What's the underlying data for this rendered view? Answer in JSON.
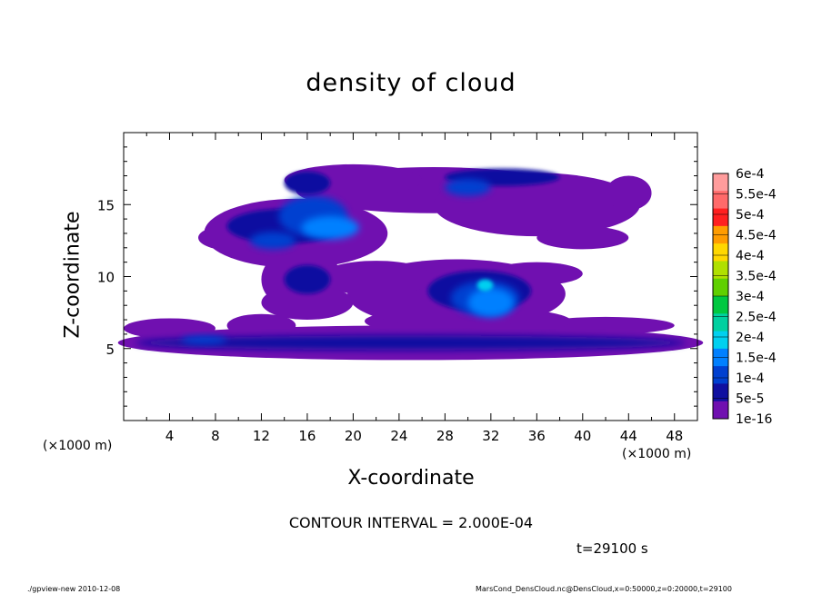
{
  "chart_data": {
    "type": "heatmap",
    "title": "density of cloud",
    "xlabel": "X-coordinate",
    "ylabel": "Z-coordinate",
    "x_unit": "(×1000 m)",
    "y_unit": "",
    "xlim": [
      0,
      50
    ],
    "ylim": [
      0,
      20
    ],
    "x_ticks": [
      "4",
      "8",
      "12",
      "16",
      "20",
      "24",
      "28",
      "32",
      "36",
      "40",
      "44",
      "48"
    ],
    "y_ticks": [
      "5",
      "10",
      "15"
    ],
    "colorbar": {
      "labels": [
        "6e-4",
        "5.5e-4",
        "5e-4",
        "4.5e-4",
        "4e-4",
        "3.5e-4",
        "3e-4",
        "2.5e-4",
        "2e-4",
        "1.5e-4",
        "1e-4",
        "5e-5",
        "1e-16"
      ],
      "colors": [
        "#ff9c9c",
        "#ff6a6a",
        "#ff2020",
        "#ff9c00",
        "#ffd700",
        "#b0e000",
        "#60d000",
        "#00c840",
        "#00d0a0",
        "#00d0f0",
        "#0080ff",
        "#0040d0",
        "#1010a0",
        "#7010b0"
      ]
    },
    "regions": [
      {
        "name": "upper cloud band",
        "x_range": [
          7,
          45
        ],
        "z_range": [
          11.5,
          17.8
        ],
        "level": "1e-16 to 1e-4"
      },
      {
        "name": "left dense core",
        "x_range": [
          9,
          22
        ],
        "z_range": [
          12,
          15.5
        ],
        "level": "up to 1.5e-4"
      },
      {
        "name": "middle cloud",
        "x_range": [
          19,
          38
        ],
        "z_range": [
          6,
          11
        ],
        "level": "up to 2e-4"
      },
      {
        "name": "lower cloud layer",
        "x_range": [
          0,
          50
        ],
        "z_range": [
          4.2,
          7
        ],
        "level": "1e-16 to 5e-5"
      }
    ],
    "contour_interval": "CONTOUR INTERVAL = 2.000E-04",
    "time": "t=29100 s"
  },
  "footer": {
    "left": "./gpview-new   2010-12-08",
    "right": "MarsCond_DensCloud.nc@DensCloud,x=0:50000,z=0:20000,t=29100"
  }
}
